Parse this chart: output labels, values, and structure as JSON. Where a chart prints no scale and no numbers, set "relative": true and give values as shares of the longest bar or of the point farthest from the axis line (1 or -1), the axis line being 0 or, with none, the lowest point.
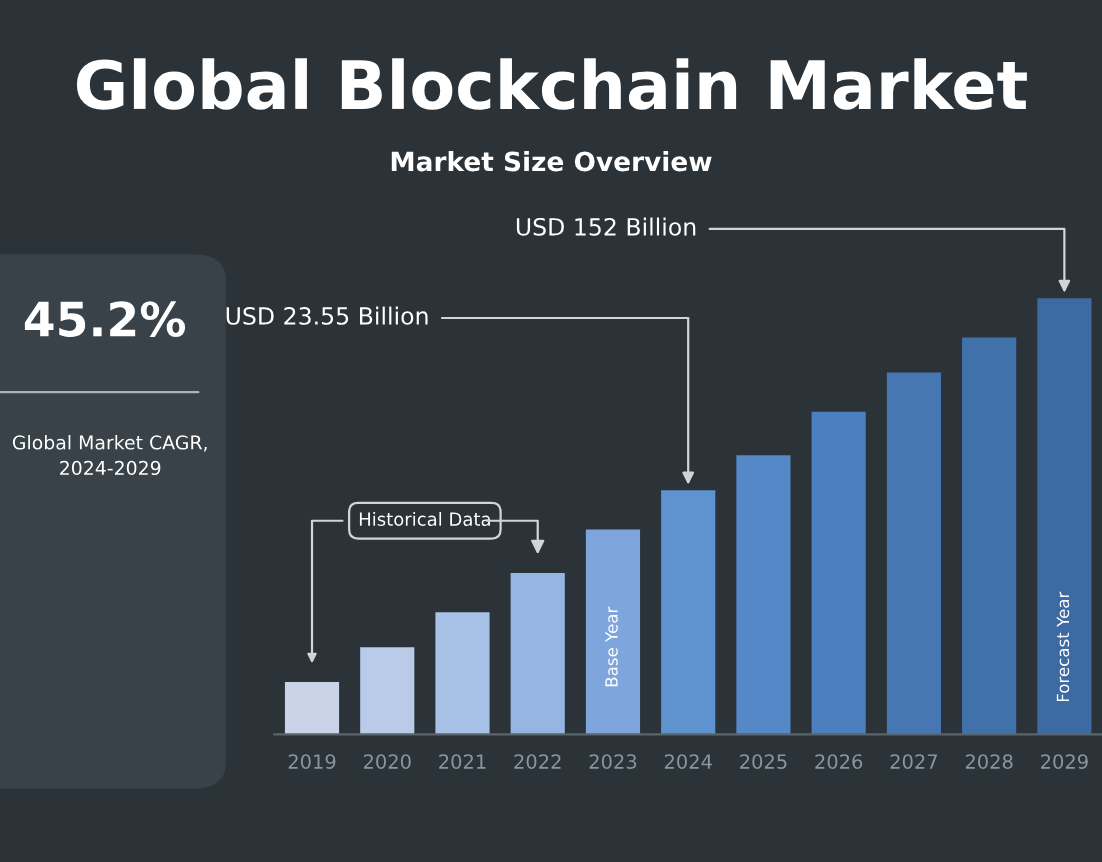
{
  "chart_data": {
    "type": "bar",
    "title": "Global Blockchain Market",
    "subtitle": "Market Size Overview",
    "categories": [
      "2019",
      "2020",
      "2021",
      "2022",
      "2023",
      "2024",
      "2025",
      "2026",
      "2027",
      "2028",
      "2029"
    ],
    "values": [
      0.12,
      0.2,
      0.28,
      0.37,
      0.47,
      0.56,
      0.64,
      0.74,
      0.83,
      0.91,
      1.0
    ],
    "colors": [
      "#c9d3e8",
      "#b9cbe8",
      "#a8c1e6",
      "#95b5e2",
      "#7fa6dc",
      "#5f93cf",
      "#5488c6",
      "#4b7fbd",
      "#4677b3",
      "#4171aa",
      "#3d6aa2"
    ],
    "relative": true,
    "annotations": [
      "45.2%",
      "Global Market CAGR, 2024-2029",
      "Historical Data",
      "Base Year",
      "Forecast Year",
      "USD 23.55 Billion",
      "USD 152 Billion"
    ]
  }
}
